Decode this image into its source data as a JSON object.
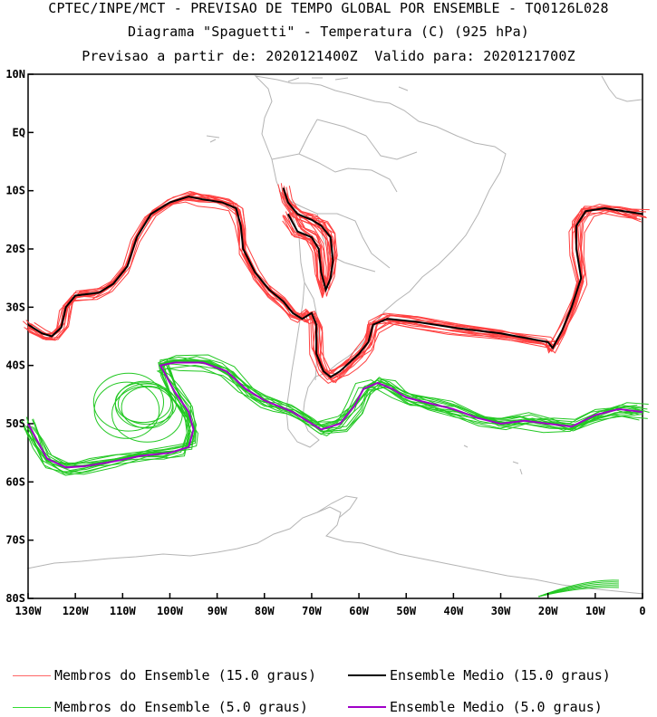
{
  "header": {
    "line1": "CPTEC/INPE/MCT - PREVISAO DE TEMPO GLOBAL POR ENSEMBLE - TQ0126L028",
    "line2": "Diagrama \"Spaguetti\" - Temperatura (C) (925 hPa)",
    "line3": "Previsao a partir de: 2020121400Z  Valido para: 2020121700Z"
  },
  "chart_data": {
    "type": "line",
    "title": "Diagrama \"Spaguetti\" - Temperatura (C) (925 hPa)",
    "xlim": [
      -130,
      0
    ],
    "ylim": [
      -80,
      10
    ],
    "x_ticks": [
      {
        "value": -130,
        "label": "130W"
      },
      {
        "value": -120,
        "label": "120W"
      },
      {
        "value": -110,
        "label": "110W"
      },
      {
        "value": -100,
        "label": "100W"
      },
      {
        "value": -90,
        "label": "90W"
      },
      {
        "value": -80,
        "label": "80W"
      },
      {
        "value": -70,
        "label": "70W"
      },
      {
        "value": -60,
        "label": "60W"
      },
      {
        "value": -50,
        "label": "50W"
      },
      {
        "value": -40,
        "label": "40W"
      },
      {
        "value": -30,
        "label": "30W"
      },
      {
        "value": -20,
        "label": "20W"
      },
      {
        "value": -10,
        "label": "10W"
      },
      {
        "value": 0,
        "label": "0"
      }
    ],
    "y_ticks": [
      {
        "value": 10,
        "label": "10N"
      },
      {
        "value": 0,
        "label": "EQ"
      },
      {
        "value": -10,
        "label": "10S"
      },
      {
        "value": -20,
        "label": "20S"
      },
      {
        "value": -30,
        "label": "30S"
      },
      {
        "value": -40,
        "label": "40S"
      },
      {
        "value": -50,
        "label": "50S"
      },
      {
        "value": -60,
        "label": "60S"
      },
      {
        "value": -70,
        "label": "70S"
      },
      {
        "value": -80,
        "label": "80S"
      }
    ],
    "series": [
      {
        "name": "Ensemble Medio (15.0 graus)",
        "color": "#000000",
        "segments": [
          [
            [
              -130,
              -33
            ],
            [
              -127,
              -34.5
            ],
            [
              -125,
              -35
            ],
            [
              -123,
              -33.5
            ],
            [
              -122,
              -30
            ],
            [
              -120,
              -28
            ],
            [
              -115,
              -27.5
            ],
            [
              -112,
              -26
            ],
            [
              -109,
              -23
            ],
            [
              -107,
              -18
            ],
            [
              -104,
              -14
            ],
            [
              -100,
              -12
            ],
            [
              -96,
              -11
            ],
            [
              -93,
              -11.5
            ],
            [
              -89,
              -12
            ],
            [
              -86,
              -13
            ],
            [
              -85,
              -16
            ],
            [
              -84.5,
              -20
            ],
            [
              -82,
              -24
            ],
            [
              -79,
              -27
            ],
            [
              -76,
              -29
            ],
            [
              -74,
              -31
            ],
            [
              -72,
              -32
            ],
            [
              -70,
              -31
            ],
            [
              -69,
              -33
            ],
            [
              -69,
              -38
            ],
            [
              -67.5,
              -41
            ],
            [
              -66,
              -42
            ],
            [
              -64,
              -41
            ],
            [
              -62,
              -39.5
            ],
            [
              -60,
              -38
            ],
            [
              -58,
              -36
            ],
            [
              -57,
              -33
            ],
            [
              -54,
              -32
            ],
            [
              -48,
              -32.5
            ],
            [
              -40,
              -33.5
            ],
            [
              -30,
              -34.5
            ],
            [
              -20,
              -36
            ],
            [
              -19,
              -37
            ],
            [
              -17,
              -34
            ],
            [
              -15,
              -30
            ],
            [
              -13,
              -25
            ],
            [
              -14,
              -20
            ],
            [
              -14,
              -16
            ],
            [
              -12,
              -13.5
            ],
            [
              -8,
              -13
            ],
            [
              -4,
              -13.5
            ],
            [
              0,
              -14
            ]
          ],
          [
            [
              -76,
              -9.5
            ],
            [
              -75,
              -12
            ],
            [
              -73,
              -14
            ],
            [
              -70,
              -15
            ],
            [
              -68,
              -16
            ],
            [
              -66,
              -18
            ],
            [
              -65.5,
              -22
            ],
            [
              -66,
              -25
            ],
            [
              -67,
              -27
            ],
            [
              -68,
              -24
            ],
            [
              -68.5,
              -20
            ],
            [
              -70,
              -18
            ],
            [
              -73,
              -17
            ],
            [
              -75,
              -14
            ]
          ]
        ]
      },
      {
        "name": "Ensemble Medio (5.0 graus)",
        "color": "#a000c8",
        "segments": [
          [
            [
              -130,
              -50
            ],
            [
              -128,
              -53
            ],
            [
              -126,
              -56
            ],
            [
              -122,
              -57.5
            ],
            [
              -118,
              -57.3
            ],
            [
              -112,
              -56.5
            ],
            [
              -106,
              -55.5
            ],
            [
              -100,
              -55
            ],
            [
              -96,
              -54
            ],
            [
              -95,
              -51
            ],
            [
              -96,
              -48
            ],
            [
              -99,
              -44.5
            ],
            [
              -101,
              -41.5
            ],
            [
              -102,
              -40
            ],
            [
              -99,
              -39.5
            ],
            [
              -93,
              -39.5
            ],
            [
              -88,
              -41
            ],
            [
              -84,
              -44
            ],
            [
              -80,
              -46
            ],
            [
              -77,
              -47
            ],
            [
              -74,
              -48
            ],
            [
              -70,
              -50
            ],
            [
              -68,
              -51
            ],
            [
              -64,
              -50
            ],
            [
              -61,
              -47
            ],
            [
              -59,
              -44
            ],
            [
              -56,
              -43
            ],
            [
              -53,
              -44
            ],
            [
              -50,
              -45.5
            ],
            [
              -45,
              -46.5
            ],
            [
              -40,
              -47.5
            ],
            [
              -35,
              -49
            ],
            [
              -30,
              -50
            ],
            [
              -25,
              -49.5
            ],
            [
              -20,
              -50
            ],
            [
              -15,
              -50.5
            ],
            [
              -10,
              -48.5
            ],
            [
              -5,
              -47.5
            ],
            [
              0,
              -48
            ]
          ]
        ]
      }
    ],
    "ensemble_members": [
      {
        "name": "Membros do Ensemble (15.0 graus)",
        "color": "#ff4040",
        "members": 14
      },
      {
        "name": "Membros do Ensemble (5.0 graus)",
        "color": "#22c822",
        "members": 14
      }
    ],
    "map_layer": "coastlines and political borders (gray)"
  },
  "legend": {
    "items": [
      {
        "label": "Membros do Ensemble (15.0 graus)",
        "color": "#ff6666"
      },
      {
        "label": "Ensemble Medio (15.0 graus)",
        "color": "#000000"
      },
      {
        "label": "Membros do Ensemble (5.0 graus)",
        "color": "#33dd33"
      },
      {
        "label": "Ensemble Medio (5.0 graus)",
        "color": "#a000c8"
      }
    ]
  }
}
